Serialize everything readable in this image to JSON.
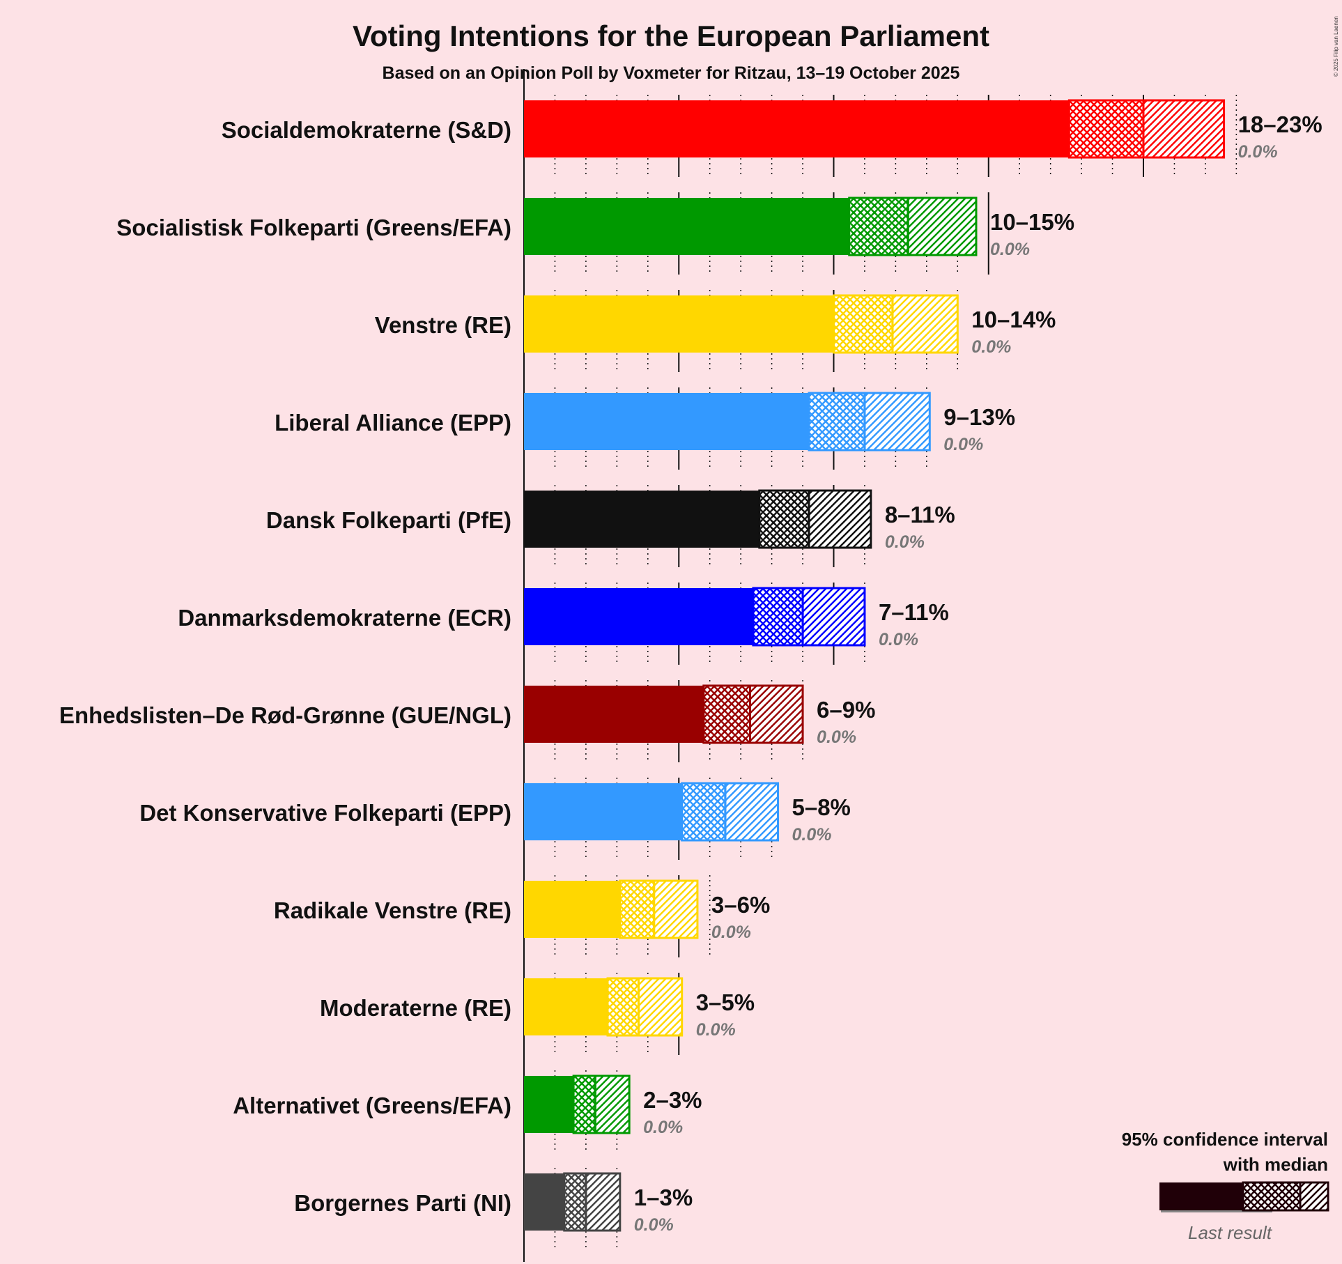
{
  "title": "Voting Intentions for the European Parliament",
  "subtitle": "Based on an Opinion Poll by Voxmeter for Ritzau, 13–19 October 2025",
  "copyright": "© 2025 Filip van Laenen",
  "legend": {
    "line1": "95% confidence interval",
    "line2": "with median",
    "last_result": "Last result"
  },
  "chart_data": {
    "type": "bar",
    "orientation": "horizontal",
    "title": "Voting Intentions for the European Parliament",
    "subtitle": "Based on an Opinion Poll by Voxmeter for Ritzau, 13–19 October 2025",
    "unit": "%",
    "xlim": [
      0,
      23
    ],
    "series_fields": [
      "ci_low",
      "median",
      "ci_high",
      "last_result"
    ],
    "parties": [
      {
        "name": "Socialdemokraterne (S&D)",
        "color": "#ff0000",
        "ci_low": 17.6,
        "median": 20.0,
        "ci_high": 22.6,
        "range_label": "18–23%",
        "last_label": "0.0%",
        "last_result": 0.0
      },
      {
        "name": "Socialistisk Folkeparti (Greens/EFA)",
        "color": "#009900",
        "ci_low": 10.5,
        "median": 12.4,
        "ci_high": 14.6,
        "range_label": "10–15%",
        "last_label": "0.0%",
        "last_result": 0.0
      },
      {
        "name": "Venstre (RE)",
        "color": "#ffd700",
        "ci_low": 10.0,
        "median": 11.9,
        "ci_high": 14.0,
        "range_label": "10–14%",
        "last_label": "0.0%",
        "last_result": 0.0
      },
      {
        "name": "Liberal Alliance (EPP)",
        "color": "#3399ff",
        "ci_low": 9.2,
        "median": 11.0,
        "ci_high": 13.1,
        "range_label": "9–13%",
        "last_label": "0.0%",
        "last_result": 0.0
      },
      {
        "name": "Dansk Folkeparti (PfE)",
        "color": "#111111",
        "ci_low": 7.6,
        "median": 9.2,
        "ci_high": 11.2,
        "range_label": "8–11%",
        "last_label": "0.0%",
        "last_result": 0.0
      },
      {
        "name": "Danmarksdemokraterne (ECR)",
        "color": "#0000ff",
        "ci_low": 7.4,
        "median": 9.0,
        "ci_high": 11.0,
        "range_label": "7–11%",
        "last_label": "0.0%",
        "last_result": 0.0
      },
      {
        "name": "Enhedslisten–De Rød-Grønne (GUE/NGL)",
        "color": "#990000",
        "ci_low": 5.8,
        "median": 7.3,
        "ci_high": 9.0,
        "range_label": "6–9%",
        "last_label": "0.0%",
        "last_result": 0.0
      },
      {
        "name": "Det Konservative Folkeparti (EPP)",
        "color": "#3399ff",
        "ci_low": 5.1,
        "median": 6.5,
        "ci_high": 8.2,
        "range_label": "5–8%",
        "last_label": "0.0%",
        "last_result": 0.0
      },
      {
        "name": "Radikale Venstre (RE)",
        "color": "#ffd700",
        "ci_low": 3.1,
        "median": 4.2,
        "ci_high": 5.6,
        "range_label": "3–6%",
        "last_label": "0.0%",
        "last_result": 0.0
      },
      {
        "name": "Moderaterne (RE)",
        "color": "#ffd700",
        "ci_low": 2.7,
        "median": 3.7,
        "ci_high": 5.1,
        "range_label": "3–5%",
        "last_label": "0.0%",
        "last_result": 0.0
      },
      {
        "name": "Alternativet (Greens/EFA)",
        "color": "#009900",
        "ci_low": 1.6,
        "median": 2.3,
        "ci_high": 3.4,
        "range_label": "2–3%",
        "last_label": "0.0%",
        "last_result": 0.0
      },
      {
        "name": "Borgernes Parti (NI)",
        "color": "#444444",
        "ci_low": 1.3,
        "median": 2.0,
        "ci_high": 3.1,
        "range_label": "1–3%",
        "last_label": "0.0%",
        "last_result": 0.0
      }
    ]
  }
}
